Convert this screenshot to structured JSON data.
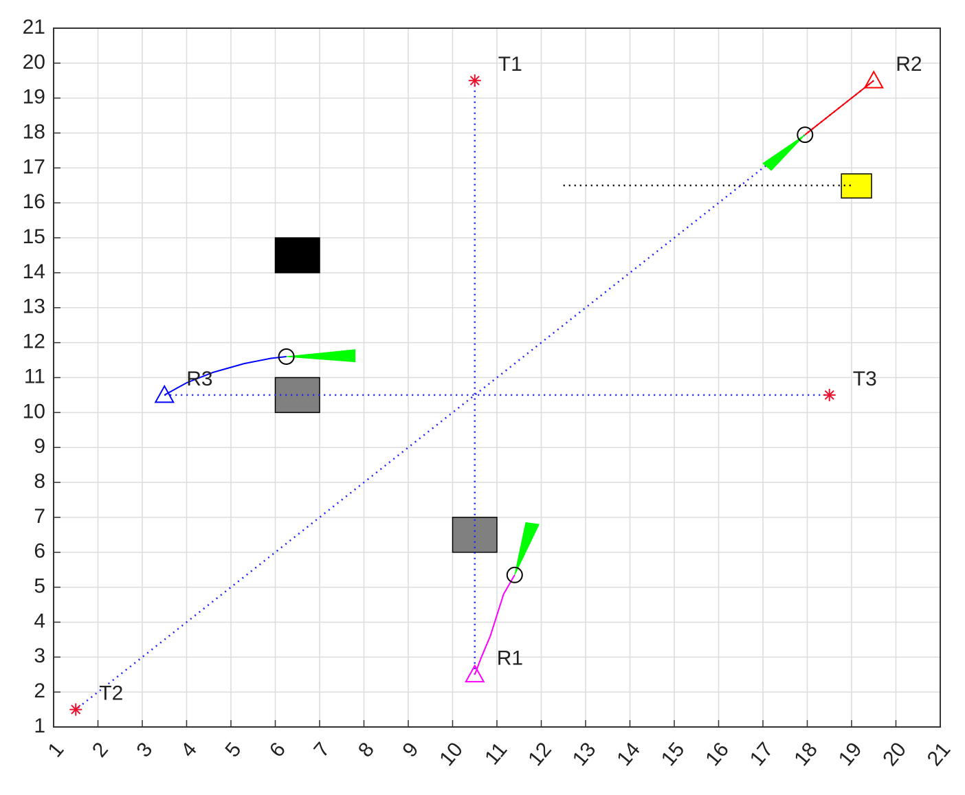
{
  "chart_data": {
    "type": "scatter",
    "xlim": [
      1,
      21
    ],
    "ylim": [
      1,
      21
    ],
    "xticks": [
      1,
      2,
      3,
      4,
      5,
      6,
      7,
      8,
      9,
      10,
      11,
      12,
      13,
      14,
      15,
      16,
      17,
      18,
      19,
      20,
      21
    ],
    "yticks": [
      1,
      2,
      3,
      4,
      5,
      6,
      7,
      8,
      9,
      10,
      11,
      12,
      13,
      14,
      15,
      16,
      17,
      18,
      19,
      20,
      21
    ],
    "grid": true,
    "targets": {
      "color": "#e8112d",
      "points": [
        {
          "name": "T1",
          "x": 10.5,
          "y": 19.5
        },
        {
          "name": "T2",
          "x": 1.5,
          "y": 1.5
        },
        {
          "name": "T3",
          "x": 18.5,
          "y": 10.5
        }
      ]
    },
    "routes": {
      "color": "#1f1fff",
      "lines": [
        {
          "x": [
            10.5,
            10.5
          ],
          "y": [
            2.5,
            19.5
          ]
        },
        {
          "x": [
            19.5,
            1.5
          ],
          "y": [
            19.5,
            1.5
          ]
        },
        {
          "x": [
            3.5,
            18.5
          ],
          "y": [
            10.5,
            10.5
          ]
        }
      ]
    },
    "reference_line": {
      "color": "#000000",
      "x": [
        12.5,
        19
      ],
      "y": [
        16.5,
        16.5
      ]
    },
    "obstacles": [
      {
        "color": "#000000",
        "x": [
          6,
          7
        ],
        "y": [
          14,
          15
        ]
      },
      {
        "color": "#808080",
        "x": [
          6,
          7
        ],
        "y": [
          10,
          11
        ]
      },
      {
        "color": "#808080",
        "x": [
          10,
          11
        ],
        "y": [
          6,
          7
        ]
      },
      {
        "color": "#ffff00",
        "x": [
          18.77,
          19.45
        ],
        "y": [
          16.14,
          16.83
        ]
      }
    ],
    "robots": [
      {
        "name": "R1",
        "color": "#ff00ff",
        "path": {
          "x": [
            10.5,
            10.65,
            10.85,
            11.0,
            11.15,
            11.4
          ],
          "y": [
            2.5,
            3.0,
            3.6,
            4.2,
            4.8,
            5.35
          ]
        },
        "sensor": {
          "x": [
            11.4,
            11.65,
            11.95
          ],
          "y": [
            5.35,
            6.85,
            6.8
          ]
        }
      },
      {
        "name": "R2",
        "color": "#ff0000",
        "path": {
          "x": [
            19.5,
            17.95
          ],
          "y": [
            19.5,
            17.95
          ]
        },
        "sensor": {
          "x": [
            17.95,
            17.0,
            17.19
          ],
          "y": [
            17.95,
            17.13,
            16.93
          ]
        }
      },
      {
        "name": "R3",
        "color": "#0000ff",
        "path": {
          "x": [
            3.5,
            4.0,
            4.6,
            5.3,
            5.9,
            6.25
          ],
          "y": [
            10.5,
            10.85,
            11.15,
            11.4,
            11.55,
            11.6
          ]
        },
        "sensor": {
          "x": [
            6.25,
            7.8,
            7.8
          ],
          "y": [
            11.6,
            11.45,
            11.8
          ]
        }
      }
    ],
    "sensor_color": "#00ff00"
  }
}
